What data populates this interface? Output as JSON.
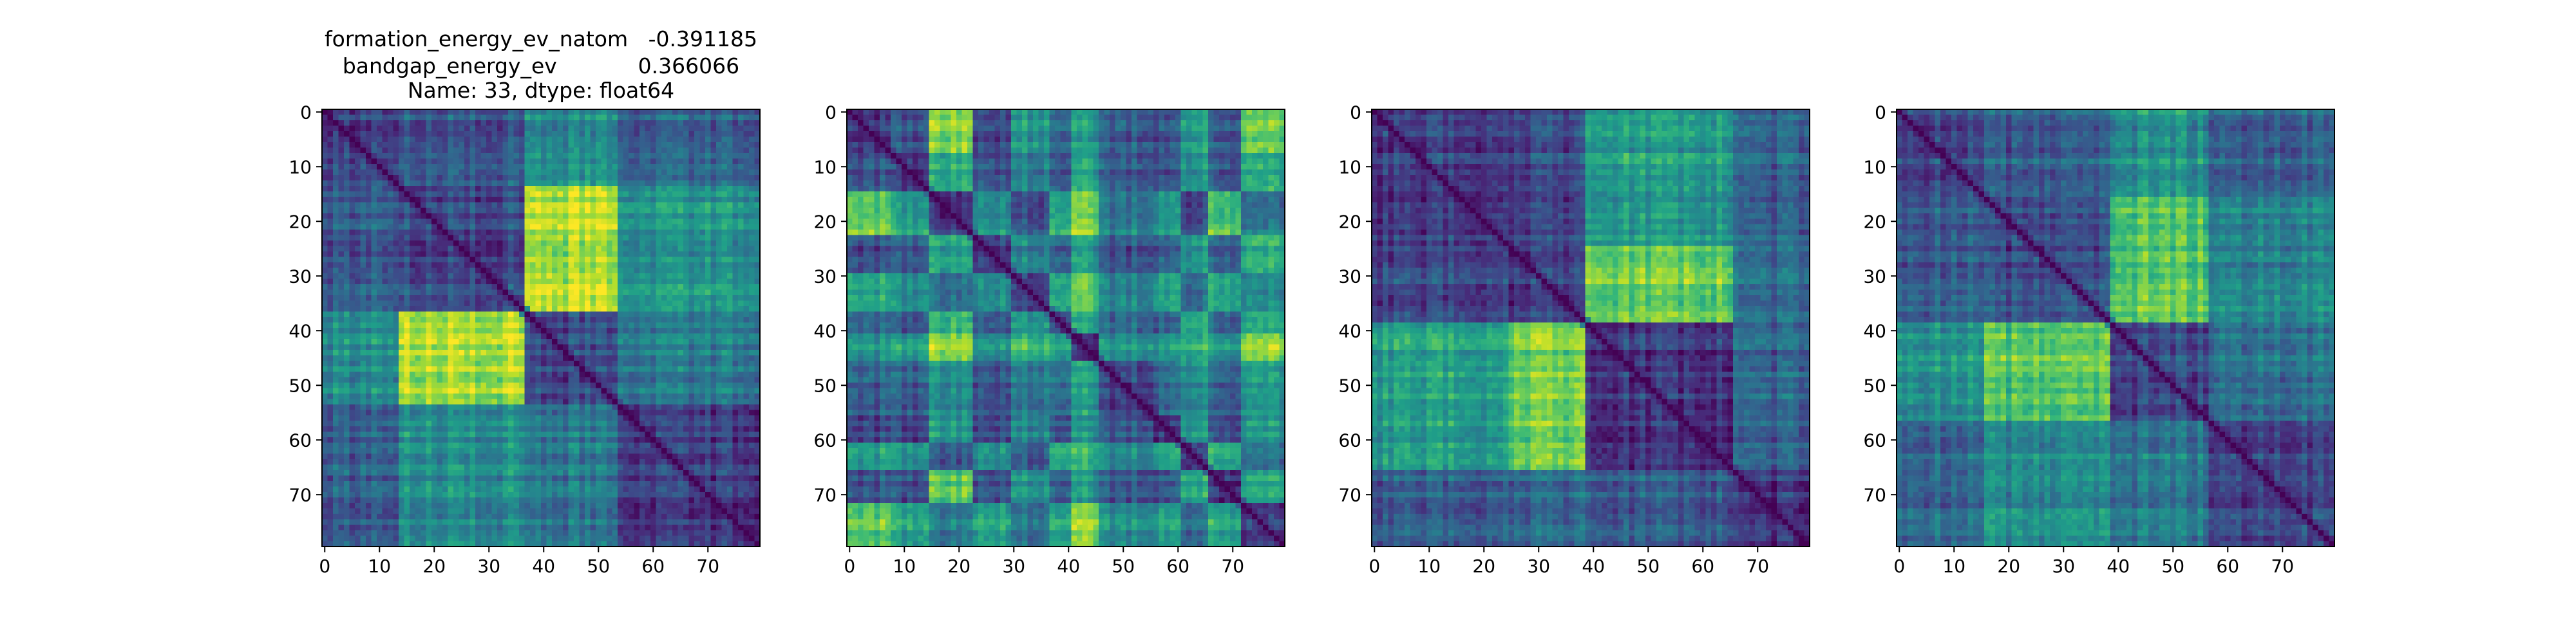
{
  "title_lines": [
    "formation_energy_ev_natom   -0.391185",
    "bandgap_energy_ev            0.366066",
    "Name: 33, dtype: float64"
  ],
  "colormap": "viridis",
  "chart_data": [
    {
      "type": "heatmap",
      "title": "",
      "rows": 80,
      "cols": 80,
      "xticks": [
        0,
        10,
        20,
        30,
        40,
        50,
        60,
        70
      ],
      "yticks": [
        0,
        10,
        20,
        30,
        40,
        50,
        60,
        70
      ],
      "block_boundaries": [
        0,
        14,
        37,
        54,
        80
      ],
      "block_levels": [
        [
          0.2,
          0.28,
          0.48,
          0.3
        ],
        [
          0.28,
          0.22,
          0.88,
          0.5
        ],
        [
          0.48,
          0.88,
          0.22,
          0.4
        ],
        [
          0.3,
          0.5,
          0.4,
          0.18
        ]
      ],
      "diagonal_zero": true
    },
    {
      "type": "heatmap",
      "title": "",
      "rows": 80,
      "cols": 80,
      "xticks": [
        0,
        10,
        20,
        30,
        40,
        50,
        60,
        70
      ],
      "yticks": [
        0,
        10,
        20,
        30,
        40,
        50,
        60,
        70
      ],
      "block_boundaries": [
        0,
        8,
        15,
        23,
        30,
        37,
        41,
        46,
        56,
        61,
        66,
        72,
        80
      ],
      "block_levels": [
        [
          0.18,
          0.28,
          0.8,
          0.25,
          0.55,
          0.3,
          0.55,
          0.3,
          0.25,
          0.55,
          0.3,
          0.75
        ],
        [
          0.28,
          0.2,
          0.6,
          0.3,
          0.45,
          0.25,
          0.6,
          0.3,
          0.25,
          0.5,
          0.28,
          0.6
        ],
        [
          0.8,
          0.6,
          0.18,
          0.55,
          0.3,
          0.6,
          0.85,
          0.45,
          0.55,
          0.25,
          0.75,
          0.4
        ],
        [
          0.25,
          0.3,
          0.55,
          0.18,
          0.45,
          0.28,
          0.55,
          0.25,
          0.28,
          0.5,
          0.3,
          0.6
        ],
        [
          0.55,
          0.45,
          0.3,
          0.45,
          0.18,
          0.5,
          0.7,
          0.4,
          0.5,
          0.3,
          0.55,
          0.4
        ],
        [
          0.3,
          0.25,
          0.6,
          0.28,
          0.5,
          0.18,
          0.55,
          0.3,
          0.25,
          0.55,
          0.3,
          0.55
        ],
        [
          0.55,
          0.6,
          0.85,
          0.55,
          0.7,
          0.55,
          0.18,
          0.55,
          0.55,
          0.65,
          0.55,
          0.85
        ],
        [
          0.3,
          0.3,
          0.45,
          0.25,
          0.4,
          0.3,
          0.55,
          0.18,
          0.3,
          0.45,
          0.3,
          0.5
        ],
        [
          0.25,
          0.25,
          0.55,
          0.28,
          0.5,
          0.25,
          0.55,
          0.3,
          0.18,
          0.55,
          0.28,
          0.55
        ],
        [
          0.55,
          0.5,
          0.25,
          0.5,
          0.3,
          0.55,
          0.65,
          0.45,
          0.55,
          0.18,
          0.6,
          0.35
        ],
        [
          0.3,
          0.28,
          0.75,
          0.3,
          0.55,
          0.3,
          0.55,
          0.3,
          0.28,
          0.6,
          0.18,
          0.6
        ],
        [
          0.75,
          0.6,
          0.4,
          0.6,
          0.4,
          0.55,
          0.85,
          0.5,
          0.55,
          0.35,
          0.6,
          0.18
        ]
      ],
      "diagonal_zero": true
    },
    {
      "type": "heatmap",
      "title": "",
      "rows": 80,
      "cols": 80,
      "xticks": [
        0,
        10,
        20,
        30,
        40,
        50,
        60,
        70
      ],
      "yticks": [
        0,
        10,
        20,
        30,
        40,
        50,
        60,
        70
      ],
      "block_boundaries": [
        0,
        25,
        39,
        66,
        80
      ],
      "block_levels": [
        [
          0.18,
          0.22,
          0.55,
          0.3
        ],
        [
          0.22,
          0.2,
          0.78,
          0.35
        ],
        [
          0.55,
          0.78,
          0.15,
          0.3
        ],
        [
          0.3,
          0.35,
          0.3,
          0.15
        ]
      ],
      "diagonal_zero": true
    },
    {
      "type": "heatmap",
      "title": "",
      "rows": 80,
      "cols": 80,
      "xticks": [
        0,
        10,
        20,
        30,
        40,
        50,
        60,
        70
      ],
      "yticks": [
        0,
        10,
        20,
        30,
        40,
        50,
        60,
        70
      ],
      "block_boundaries": [
        0,
        16,
        39,
        57,
        80
      ],
      "block_levels": [
        [
          0.22,
          0.28,
          0.5,
          0.32
        ],
        [
          0.28,
          0.22,
          0.72,
          0.45
        ],
        [
          0.5,
          0.72,
          0.22,
          0.38
        ],
        [
          0.32,
          0.45,
          0.38,
          0.2
        ]
      ],
      "diagonal_zero": true
    }
  ]
}
